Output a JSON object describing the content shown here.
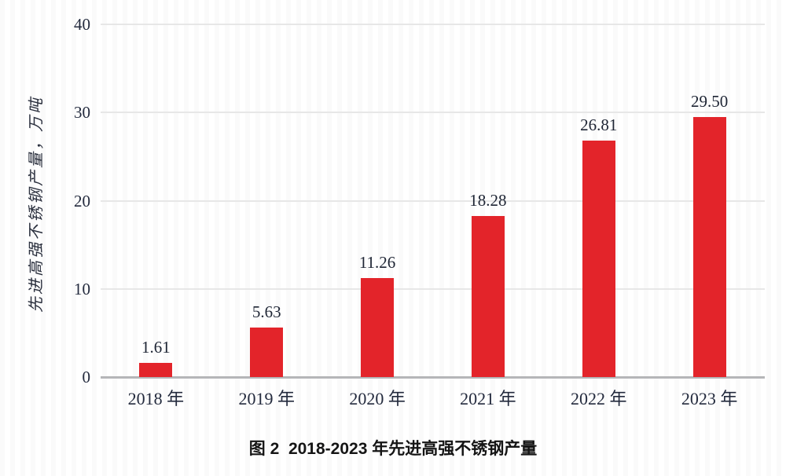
{
  "chart_data": {
    "type": "bar",
    "categories": [
      "2018 年",
      "2019 年",
      "2020 年",
      "2021 年",
      "2022 年",
      "2023 年"
    ],
    "values": [
      1.61,
      5.63,
      11.26,
      18.28,
      26.81,
      29.5
    ],
    "value_labels": [
      "1.61",
      "5.63",
      "11.26",
      "18.28",
      "26.81",
      "29.50"
    ],
    "title": "图 2  2018-2023 年先进高强不锈钢产量",
    "xlabel": "",
    "ylabel": "先进高强不锈钢产量，万吨",
    "yticks": [
      0,
      10,
      20,
      30,
      40
    ],
    "ylim": [
      0,
      40
    ],
    "grid": "horizontal",
    "legend": "none",
    "bar_color": "#e3242a",
    "gridline_color": "#e7e7e7",
    "baseline_color": "#b5b6b8",
    "text_color": "#232a3d"
  }
}
